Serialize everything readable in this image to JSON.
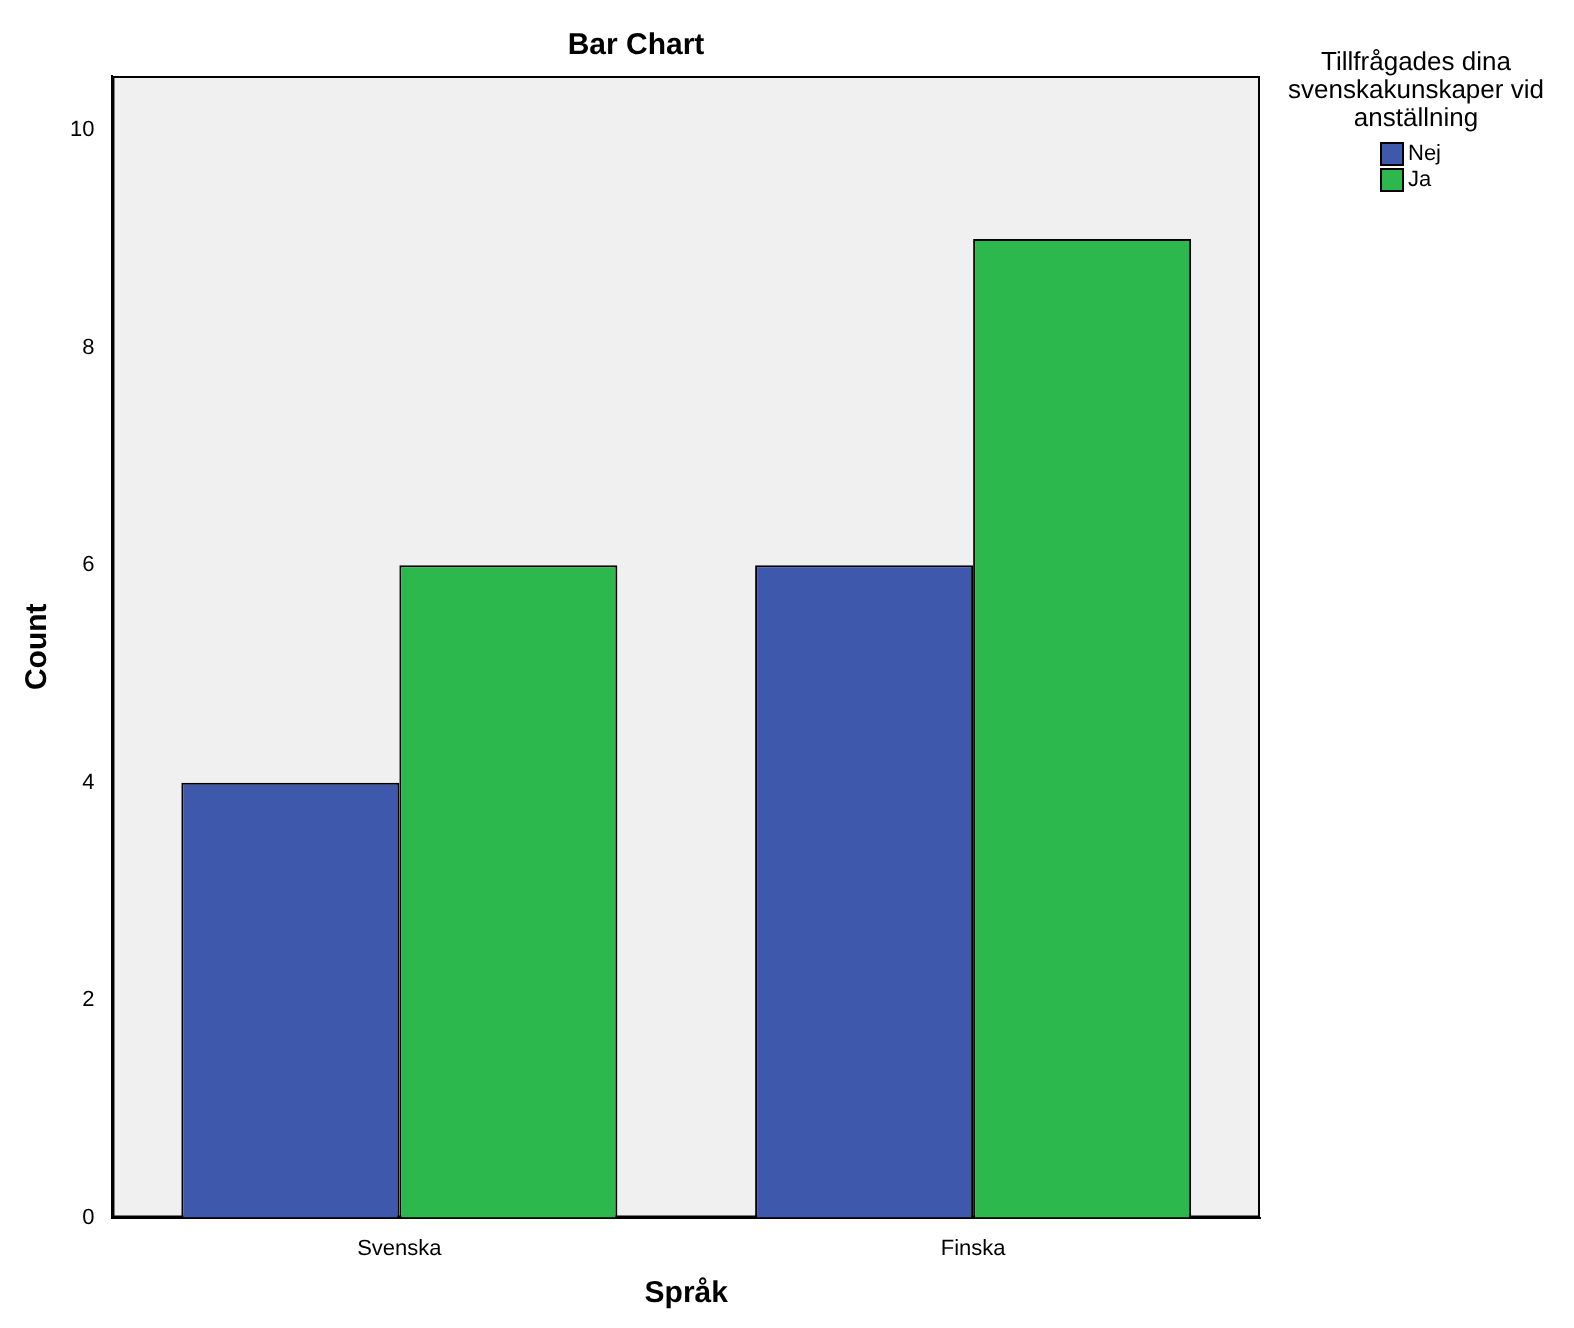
{
  "chart_data": {
    "type": "bar",
    "title": "Bar Chart",
    "xlabel": "Språk",
    "ylabel": "Count",
    "legend_title": "Tillfrågades dina svenskakunskaper vid anställning",
    "legend": "top right",
    "categories": [
      "Svenska",
      "Finska"
    ],
    "series": [
      {
        "name": "Nej",
        "color": "#3e58ac",
        "values": [
          4,
          6
        ]
      },
      {
        "name": "Ja",
        "color": "#2db84d",
        "values": [
          6,
          9
        ]
      }
    ],
    "ylim": [
      0,
      10.5
    ],
    "yticks": [
      0,
      2,
      4,
      6,
      8,
      10
    ],
    "grid": false
  }
}
